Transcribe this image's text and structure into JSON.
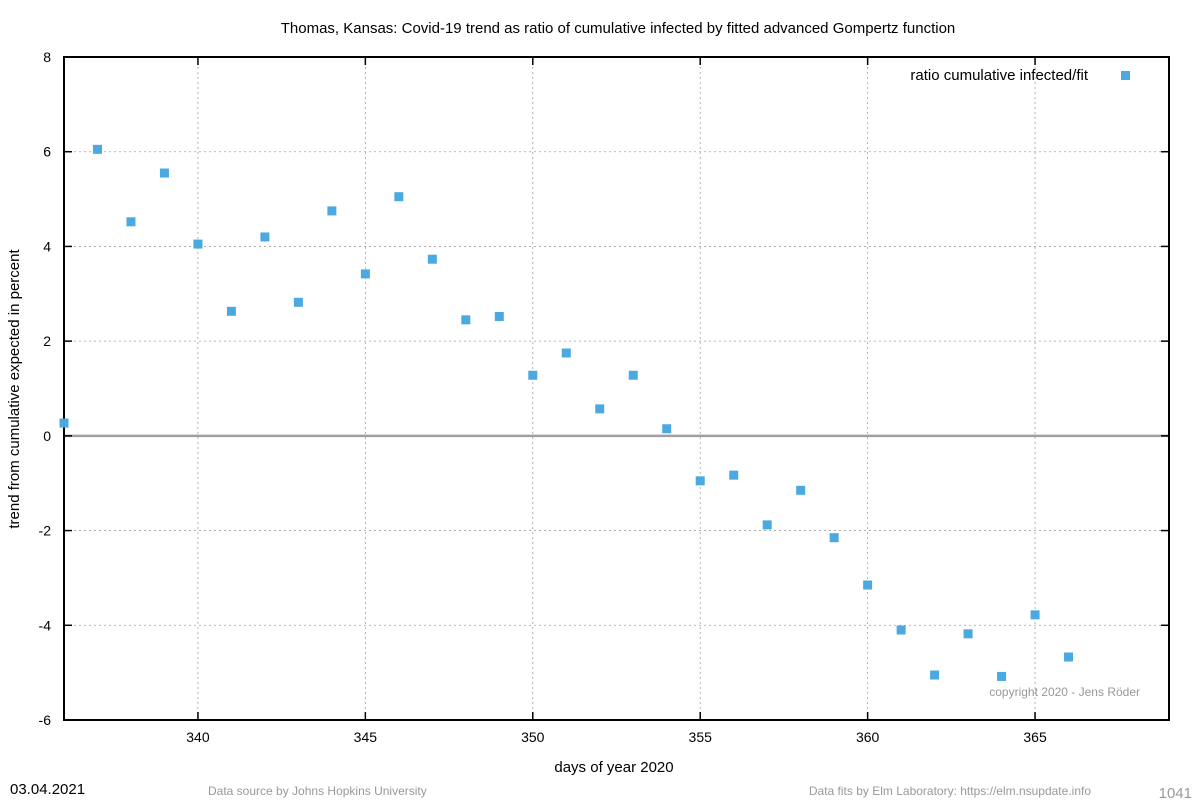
{
  "chart_data": {
    "type": "scatter",
    "title": "Thomas,  Kansas: Covid-19 trend as ratio of cumulative infected by fitted advanced Gompertz function",
    "xlabel": "days of year 2020",
    "ylabel": "trend from cumulative expected in percent",
    "xlim": [
      336,
      369
    ],
    "ylim": [
      -6,
      8
    ],
    "x_ticks": [
      340,
      345,
      350,
      355,
      360,
      365
    ],
    "y_ticks": [
      -6,
      -4,
      -2,
      0,
      2,
      4,
      6,
      8
    ],
    "grid": true,
    "legend_position": "top-right",
    "series": [
      {
        "name": "ratio cumulative infected/fit",
        "color": "#4aa9e0",
        "marker": "square",
        "x": [
          336,
          337,
          338,
          339,
          340,
          341,
          342,
          343,
          344,
          345,
          346,
          347,
          348,
          349,
          350,
          351,
          352,
          353,
          354,
          355,
          356,
          357,
          358,
          359,
          360,
          361,
          362,
          363,
          364,
          365,
          366
        ],
        "y": [
          0.27,
          6.05,
          4.52,
          5.55,
          4.05,
          2.63,
          4.2,
          2.82,
          4.75,
          3.42,
          5.05,
          3.73,
          2.45,
          2.52,
          1.28,
          1.75,
          0.57,
          1.28,
          0.15,
          -0.95,
          -0.83,
          -1.88,
          -1.15,
          -2.15,
          -3.15,
          -4.1,
          -5.05,
          -4.18,
          -5.08,
          -3.78,
          -4.67
        ]
      }
    ]
  },
  "copyright": "copyright 2020 - Jens Röder",
  "footer": {
    "date": "03.04.2021",
    "source": "Data source by Johns Hopkins University",
    "fits": "Data fits by Elm Laboratory: https://elm.nsupdate.info",
    "number": "1041"
  },
  "colors": {
    "zero_line": "#a0a0a0",
    "grid": "#a0a0a0",
    "marker": "#4aa9e0"
  }
}
